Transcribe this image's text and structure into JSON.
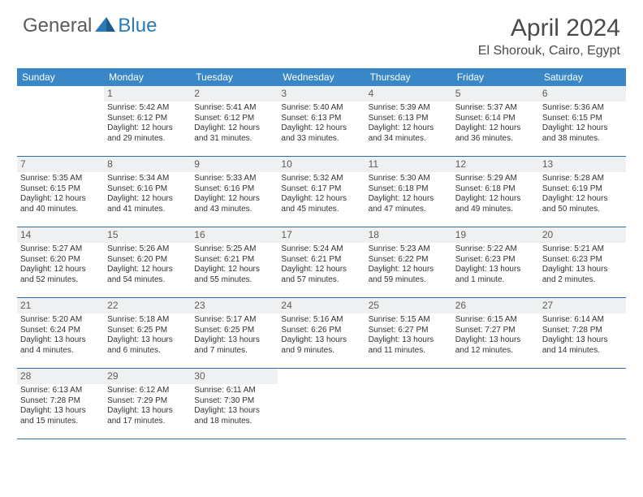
{
  "logo": {
    "text1": "General",
    "text2": "Blue"
  },
  "title": "April 2024",
  "location": "El Shorouk, Cairo, Egypt",
  "colors": {
    "header_bg": "#3a87c7",
    "header_text": "#ffffff",
    "row_divider": "#2e6ca3",
    "daynum_bg": "#eef0f1",
    "daynum_text": "#5b5b5b",
    "cell_text": "#333333",
    "title_text": "#4a4a4a"
  },
  "daysOfWeek": [
    "Sunday",
    "Monday",
    "Tuesday",
    "Wednesday",
    "Thursday",
    "Friday",
    "Saturday"
  ],
  "weeks": [
    [
      null,
      {
        "n": "1",
        "sr": "5:42 AM",
        "ss": "6:12 PM",
        "dl": "12 hours and 29 minutes."
      },
      {
        "n": "2",
        "sr": "5:41 AM",
        "ss": "6:12 PM",
        "dl": "12 hours and 31 minutes."
      },
      {
        "n": "3",
        "sr": "5:40 AM",
        "ss": "6:13 PM",
        "dl": "12 hours and 33 minutes."
      },
      {
        "n": "4",
        "sr": "5:39 AM",
        "ss": "6:13 PM",
        "dl": "12 hours and 34 minutes."
      },
      {
        "n": "5",
        "sr": "5:37 AM",
        "ss": "6:14 PM",
        "dl": "12 hours and 36 minutes."
      },
      {
        "n": "6",
        "sr": "5:36 AM",
        "ss": "6:15 PM",
        "dl": "12 hours and 38 minutes."
      }
    ],
    [
      {
        "n": "7",
        "sr": "5:35 AM",
        "ss": "6:15 PM",
        "dl": "12 hours and 40 minutes."
      },
      {
        "n": "8",
        "sr": "5:34 AM",
        "ss": "6:16 PM",
        "dl": "12 hours and 41 minutes."
      },
      {
        "n": "9",
        "sr": "5:33 AM",
        "ss": "6:16 PM",
        "dl": "12 hours and 43 minutes."
      },
      {
        "n": "10",
        "sr": "5:32 AM",
        "ss": "6:17 PM",
        "dl": "12 hours and 45 minutes."
      },
      {
        "n": "11",
        "sr": "5:30 AM",
        "ss": "6:18 PM",
        "dl": "12 hours and 47 minutes."
      },
      {
        "n": "12",
        "sr": "5:29 AM",
        "ss": "6:18 PM",
        "dl": "12 hours and 49 minutes."
      },
      {
        "n": "13",
        "sr": "5:28 AM",
        "ss": "6:19 PM",
        "dl": "12 hours and 50 minutes."
      }
    ],
    [
      {
        "n": "14",
        "sr": "5:27 AM",
        "ss": "6:20 PM",
        "dl": "12 hours and 52 minutes."
      },
      {
        "n": "15",
        "sr": "5:26 AM",
        "ss": "6:20 PM",
        "dl": "12 hours and 54 minutes."
      },
      {
        "n": "16",
        "sr": "5:25 AM",
        "ss": "6:21 PM",
        "dl": "12 hours and 55 minutes."
      },
      {
        "n": "17",
        "sr": "5:24 AM",
        "ss": "6:21 PM",
        "dl": "12 hours and 57 minutes."
      },
      {
        "n": "18",
        "sr": "5:23 AM",
        "ss": "6:22 PM",
        "dl": "12 hours and 59 minutes."
      },
      {
        "n": "19",
        "sr": "5:22 AM",
        "ss": "6:23 PM",
        "dl": "13 hours and 1 minute."
      },
      {
        "n": "20",
        "sr": "5:21 AM",
        "ss": "6:23 PM",
        "dl": "13 hours and 2 minutes."
      }
    ],
    [
      {
        "n": "21",
        "sr": "5:20 AM",
        "ss": "6:24 PM",
        "dl": "13 hours and 4 minutes."
      },
      {
        "n": "22",
        "sr": "5:18 AM",
        "ss": "6:25 PM",
        "dl": "13 hours and 6 minutes."
      },
      {
        "n": "23",
        "sr": "5:17 AM",
        "ss": "6:25 PM",
        "dl": "13 hours and 7 minutes."
      },
      {
        "n": "24",
        "sr": "5:16 AM",
        "ss": "6:26 PM",
        "dl": "13 hours and 9 minutes."
      },
      {
        "n": "25",
        "sr": "5:15 AM",
        "ss": "6:27 PM",
        "dl": "13 hours and 11 minutes."
      },
      {
        "n": "26",
        "sr": "6:15 AM",
        "ss": "7:27 PM",
        "dl": "13 hours and 12 minutes."
      },
      {
        "n": "27",
        "sr": "6:14 AM",
        "ss": "7:28 PM",
        "dl": "13 hours and 14 minutes."
      }
    ],
    [
      {
        "n": "28",
        "sr": "6:13 AM",
        "ss": "7:28 PM",
        "dl": "13 hours and 15 minutes."
      },
      {
        "n": "29",
        "sr": "6:12 AM",
        "ss": "7:29 PM",
        "dl": "13 hours and 17 minutes."
      },
      {
        "n": "30",
        "sr": "6:11 AM",
        "ss": "7:30 PM",
        "dl": "13 hours and 18 minutes."
      },
      null,
      null,
      null,
      null
    ]
  ],
  "labels": {
    "sunrise": "Sunrise:",
    "sunset": "Sunset:",
    "daylight": "Daylight:"
  }
}
